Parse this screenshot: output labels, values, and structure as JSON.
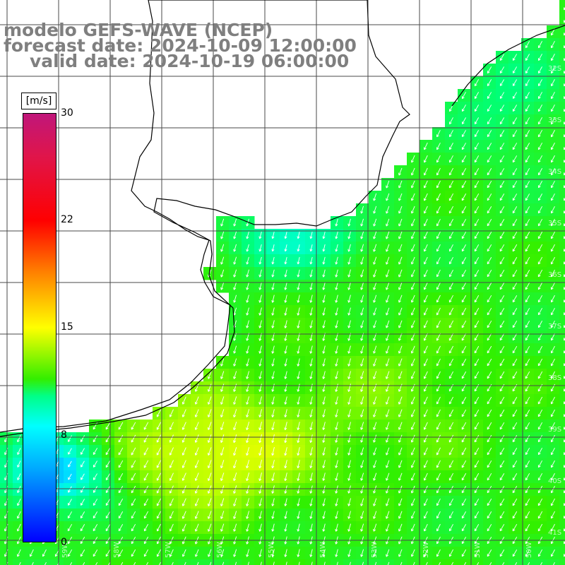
{
  "title": {
    "line1": "modelo GEFS-WAVE (NCEP)",
    "line2": "forecast date: 2024-10-09 12:00:00",
    "line3": "valid date: 2024-10-19 06:00:00"
  },
  "colorbar": {
    "unit": "[m/s]",
    "ticks": [
      "30",
      "22",
      "15",
      "8",
      "0"
    ],
    "range": [
      0,
      30
    ],
    "colors": [
      "#0000ff",
      "#00a8ff",
      "#00ffff",
      "#00ff88",
      "#33ee00",
      "#ffff00",
      "#ff8000",
      "#ff0000",
      "#c0167a"
    ]
  },
  "map": {
    "field": "wind speed (m/s) with direction arrows",
    "arrow_direction": "toward south-west",
    "lat_labels": [
      "32S",
      "33S",
      "34S",
      "35S",
      "36S",
      "37S",
      "38S",
      "39S",
      "40S",
      "41S"
    ],
    "lon_labels": [
      "59W",
      "58W",
      "57W",
      "56W",
      "55W",
      "54W",
      "53W",
      "52W",
      "51W",
      "50W"
    ],
    "colors": {
      "land": "#ffffff",
      "coast": "#000000",
      "grid": "#555555",
      "arrow": "#ffffff"
    }
  }
}
